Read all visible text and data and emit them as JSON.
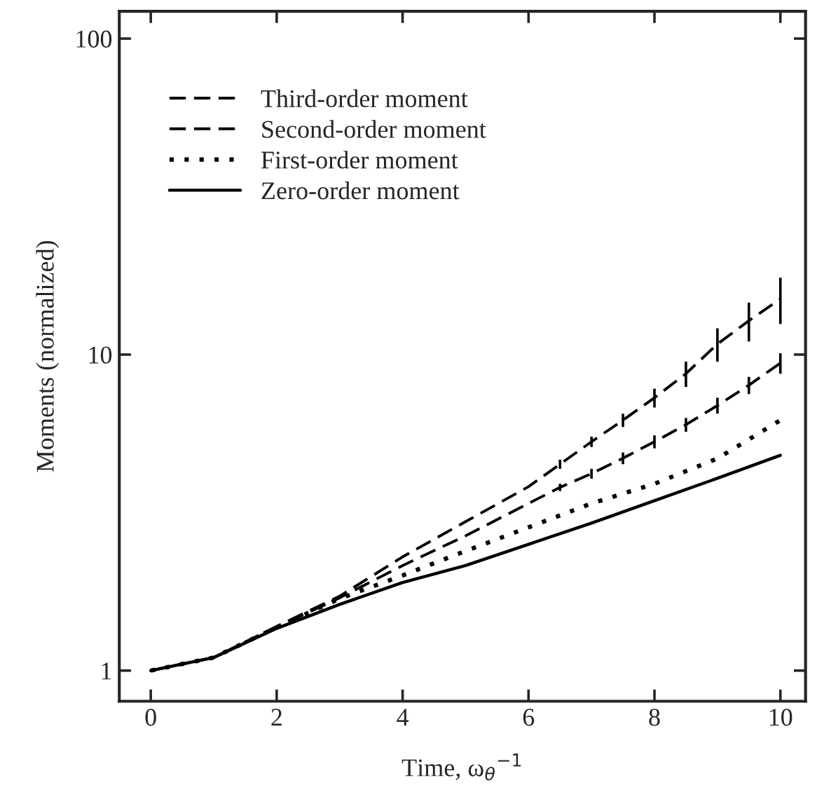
{
  "chart_data": {
    "type": "line",
    "xlabel": "Time, ω$_{θ}$$^{−1}$",
    "ylabel": "Moments (normalized)",
    "log": "y",
    "xlim": [
      -0.5,
      10.4
    ],
    "ylim": [
      0.8,
      122
    ],
    "xticks": [
      0,
      2,
      4,
      6,
      8,
      10
    ],
    "yticks": [
      1,
      10,
      100
    ],
    "grid": false,
    "legend": "top left",
    "marker": "none",
    "series": [
      {
        "name": "Third-order moment",
        "color": "#000000",
        "line_style": "dashed",
        "x": [
          0,
          1,
          2,
          3,
          4,
          5,
          6,
          6.5,
          7,
          7.5,
          8,
          8.5,
          9,
          9.5,
          10
        ],
        "values": [
          1,
          1.1,
          1.38,
          1.72,
          2.29,
          2.96,
          3.82,
          4.5,
          5.3,
          6.2,
          7.3,
          8.7,
          10.8,
          12.8,
          15
        ],
        "errors": [
          null,
          null,
          null,
          null,
          null,
          null,
          null,
          0.15,
          0.2,
          0.3,
          0.5,
          0.8,
          1.3,
          1.8,
          2.5
        ]
      },
      {
        "name": "Second-order moment",
        "color": "#000000",
        "line_style": "dashed",
        "x": [
          0,
          1,
          2,
          3,
          4,
          5,
          6,
          6.5,
          7,
          7.5,
          8,
          8.5,
          9,
          9.5,
          10
        ],
        "values": [
          1,
          1.1,
          1.37,
          1.7,
          2.15,
          2.67,
          3.38,
          3.8,
          4.2,
          4.7,
          5.3,
          6.0,
          6.9,
          8.0,
          9.4
        ],
        "errors": [
          null,
          null,
          null,
          null,
          null,
          null,
          null,
          0.1,
          0.15,
          0.2,
          0.25,
          0.3,
          0.4,
          0.5,
          0.7
        ]
      },
      {
        "name": "First-order moment",
        "color": "#000000",
        "line_style": "dotted",
        "x": [
          0,
          1,
          2,
          3,
          4,
          5,
          6,
          7,
          8,
          9,
          10
        ],
        "values": [
          1,
          1.1,
          1.37,
          1.69,
          2.0,
          2.39,
          2.84,
          3.38,
          3.9,
          4.69,
          6.2
        ]
      },
      {
        "name": "Zero-order moment",
        "color": "#000000",
        "line_style": "solid",
        "x": [
          0,
          1,
          2,
          3,
          4,
          5,
          6,
          7,
          8,
          9,
          10
        ],
        "values": [
          1,
          1.1,
          1.36,
          1.62,
          1.9,
          2.15,
          2.51,
          2.93,
          3.45,
          4.06,
          4.8
        ]
      }
    ]
  }
}
